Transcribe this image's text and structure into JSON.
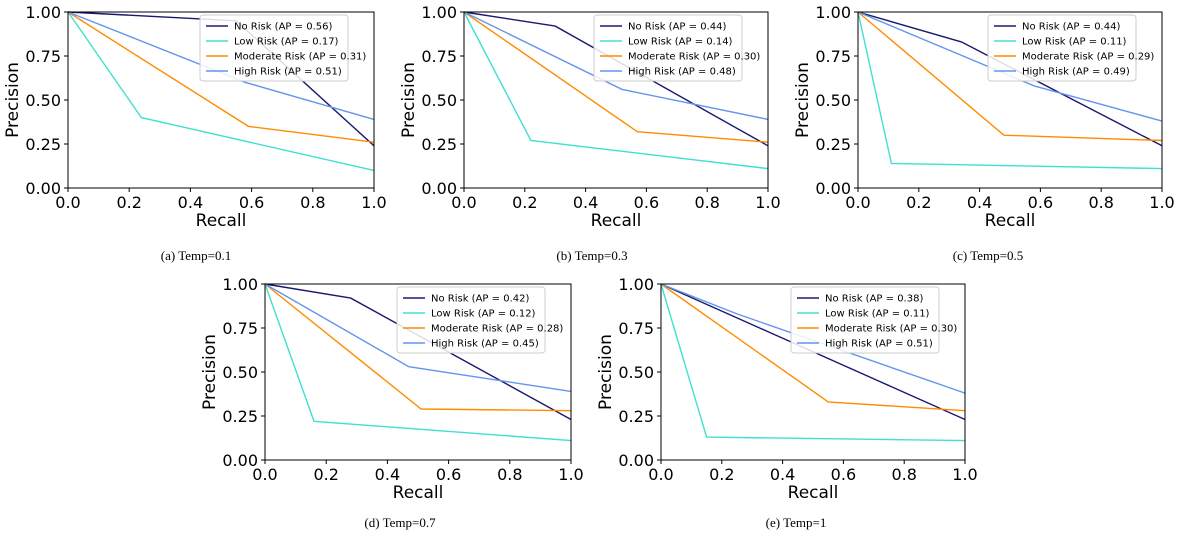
{
  "colors": {
    "no_risk": "#191970",
    "low_risk": "#40e0d0",
    "moderate_risk": "#ff8c00",
    "high_risk": "#6495ed"
  },
  "chart_data": [
    {
      "type": "line",
      "caption": "(a) Temp=0.1",
      "xlabel": "Recall",
      "ylabel": "Precision",
      "xlim": [
        0,
        1
      ],
      "ylim": [
        0,
        1
      ],
      "xticks": [
        "0.0",
        "0.2",
        "0.4",
        "0.6",
        "0.8",
        "1.0"
      ],
      "yticks": [
        "0.00",
        "0.25",
        "0.50",
        "0.75",
        "1.00"
      ],
      "grid": false,
      "legend": "top-right",
      "series": [
        {
          "name": "No Risk (AP = 0.56)",
          "color": "#191970",
          "x": [
            0,
            0.55,
            1.0
          ],
          "y": [
            1.0,
            0.95,
            0.24
          ]
        },
        {
          "name": "Low Risk (AP = 0.17)",
          "color": "#40e0d0",
          "x": [
            0,
            0.24,
            1.0
          ],
          "y": [
            1.0,
            0.4,
            0.1
          ]
        },
        {
          "name": "Moderate Risk (AP = 0.31)",
          "color": "#ff8c00",
          "x": [
            0,
            0.59,
            1.0
          ],
          "y": [
            1.0,
            0.35,
            0.26
          ]
        },
        {
          "name": "High Risk (AP = 0.51)",
          "color": "#6495ed",
          "x": [
            0,
            0.58,
            1.0
          ],
          "y": [
            1.0,
            0.6,
            0.39
          ]
        }
      ]
    },
    {
      "type": "line",
      "caption": "(b) Temp=0.3",
      "xlabel": "Recall",
      "ylabel": "Precision",
      "xlim": [
        0,
        1
      ],
      "ylim": [
        0,
        1
      ],
      "xticks": [
        "0.0",
        "0.2",
        "0.4",
        "0.6",
        "0.8",
        "1.0"
      ],
      "yticks": [
        "0.00",
        "0.25",
        "0.50",
        "0.75",
        "1.00"
      ],
      "grid": false,
      "legend": "top-right",
      "series": [
        {
          "name": "No Risk (AP = 0.44)",
          "color": "#191970",
          "x": [
            0,
            0.3,
            1.0
          ],
          "y": [
            1.0,
            0.92,
            0.24
          ]
        },
        {
          "name": "Low Risk (AP = 0.14)",
          "color": "#40e0d0",
          "x": [
            0,
            0.22,
            1.0
          ],
          "y": [
            1.0,
            0.27,
            0.11
          ]
        },
        {
          "name": "Moderate Risk (AP = 0.30)",
          "color": "#ff8c00",
          "x": [
            0,
            0.57,
            1.0
          ],
          "y": [
            1.0,
            0.32,
            0.26
          ]
        },
        {
          "name": "High Risk (AP = 0.48)",
          "color": "#6495ed",
          "x": [
            0,
            0.52,
            1.0
          ],
          "y": [
            1.0,
            0.56,
            0.39
          ]
        }
      ]
    },
    {
      "type": "line",
      "caption": "(c) Temp=0.5",
      "xlabel": "Recall",
      "ylabel": "Precision",
      "xlim": [
        0,
        1
      ],
      "ylim": [
        0,
        1
      ],
      "xticks": [
        "0.0",
        "0.2",
        "0.4",
        "0.6",
        "0.8",
        "1.0"
      ],
      "yticks": [
        "0.00",
        "0.25",
        "0.50",
        "0.75",
        "1.00"
      ],
      "grid": false,
      "legend": "top-right",
      "series": [
        {
          "name": "No Risk (AP = 0.44)",
          "color": "#191970",
          "x": [
            0,
            0.34,
            1.0
          ],
          "y": [
            1.0,
            0.83,
            0.24
          ]
        },
        {
          "name": "Low Risk (AP = 0.11)",
          "color": "#40e0d0",
          "x": [
            0,
            0.11,
            1.0
          ],
          "y": [
            1.0,
            0.14,
            0.11
          ]
        },
        {
          "name": "Moderate Risk (AP = 0.29)",
          "color": "#ff8c00",
          "x": [
            0,
            0.48,
            1.0
          ],
          "y": [
            1.0,
            0.3,
            0.27
          ]
        },
        {
          "name": "High Risk (AP = 0.49)",
          "color": "#6495ed",
          "x": [
            0,
            0.58,
            1.0
          ],
          "y": [
            1.0,
            0.58,
            0.38
          ]
        }
      ]
    },
    {
      "type": "line",
      "caption": "(d) Temp=0.7",
      "xlabel": "Recall",
      "ylabel": "Precision",
      "xlim": [
        0,
        1
      ],
      "ylim": [
        0,
        1
      ],
      "xticks": [
        "0.0",
        "0.2",
        "0.4",
        "0.6",
        "0.8",
        "1.0"
      ],
      "yticks": [
        "0.00",
        "0.25",
        "0.50",
        "0.75",
        "1.00"
      ],
      "grid": false,
      "legend": "top-right",
      "series": [
        {
          "name": "No Risk (AP = 0.42)",
          "color": "#191970",
          "x": [
            0,
            0.28,
            1.0
          ],
          "y": [
            1.0,
            0.92,
            0.23
          ]
        },
        {
          "name": "Low Risk (AP = 0.12)",
          "color": "#40e0d0",
          "x": [
            0,
            0.16,
            1.0
          ],
          "y": [
            1.0,
            0.22,
            0.11
          ]
        },
        {
          "name": "Moderate Risk (AP = 0.28)",
          "color": "#ff8c00",
          "x": [
            0,
            0.51,
            1.0
          ],
          "y": [
            1.0,
            0.29,
            0.28
          ]
        },
        {
          "name": "High Risk (AP = 0.45)",
          "color": "#6495ed",
          "x": [
            0,
            0.47,
            1.0
          ],
          "y": [
            1.0,
            0.53,
            0.39
          ]
        }
      ]
    },
    {
      "type": "line",
      "caption": "(e) Temp=1",
      "xlabel": "Recall",
      "ylabel": "Precision",
      "xlim": [
        0,
        1
      ],
      "ylim": [
        0,
        1
      ],
      "xticks": [
        "0.0",
        "0.2",
        "0.4",
        "0.6",
        "0.8",
        "1.0"
      ],
      "yticks": [
        "0.00",
        "0.25",
        "0.50",
        "0.75",
        "1.00"
      ],
      "grid": false,
      "legend": "top-right",
      "series": [
        {
          "name": "No Risk (AP = 0.38)",
          "color": "#191970",
          "x": [
            0,
            1.0
          ],
          "y": [
            1.0,
            0.23
          ]
        },
        {
          "name": "Low Risk (AP = 0.11)",
          "color": "#40e0d0",
          "x": [
            0,
            0.15,
            1.0
          ],
          "y": [
            1.0,
            0.13,
            0.11
          ]
        },
        {
          "name": "Moderate Risk (AP = 0.30)",
          "color": "#ff8c00",
          "x": [
            0,
            0.55,
            1.0
          ],
          "y": [
            1.0,
            0.33,
            0.28
          ]
        },
        {
          "name": "High Risk (AP = 0.51)",
          "color": "#6495ed",
          "x": [
            0,
            0.25,
            1.0
          ],
          "y": [
            1.0,
            0.83,
            0.38
          ]
        }
      ]
    }
  ]
}
